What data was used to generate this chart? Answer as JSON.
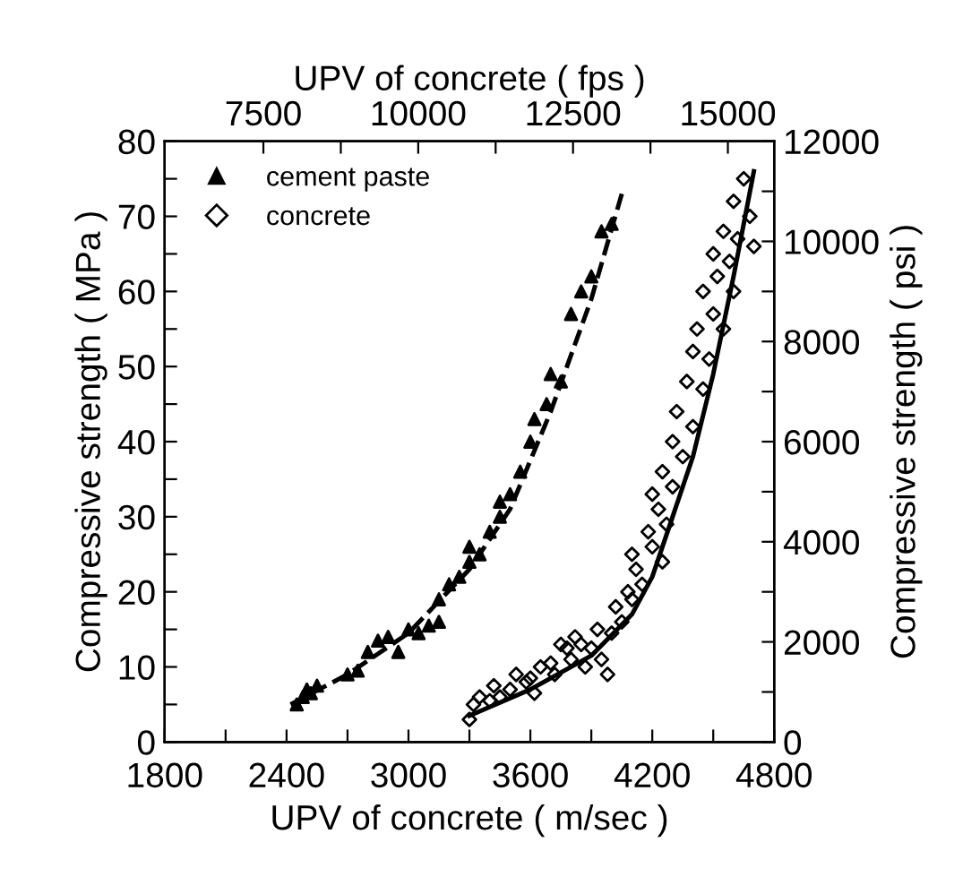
{
  "chart_data": {
    "type": "scatter",
    "xlabel": "UPV of concrete ( m/sec )",
    "ylabel": "Compressive strength ( MPa )",
    "x2label": "UPV of concrete ( fps )",
    "y2label": "Compressive strength ( psi )",
    "xlim": [
      1800,
      4800
    ],
    "ylim": [
      0,
      80
    ],
    "x2lim": [
      5905.5,
      15748
    ],
    "y2lim": [
      0,
      12000
    ],
    "xticks": [
      1800,
      {
        "value": 2100,
        "label": null
      },
      2400,
      {
        "value": 2700,
        "label": null
      },
      3000,
      {
        "value": 3300,
        "label": null
      },
      3600,
      {
        "value": 3900,
        "label": null
      },
      4200,
      {
        "value": 4500,
        "label": null
      },
      4800
    ],
    "yticks": [
      0,
      {
        "value": 5,
        "label": null
      },
      10,
      {
        "value": 15,
        "label": null
      },
      20,
      {
        "value": 25,
        "label": null
      },
      30,
      {
        "value": 35,
        "label": null
      },
      40,
      {
        "value": 45,
        "label": null
      },
      50,
      {
        "value": 55,
        "label": null
      },
      60,
      {
        "value": 65,
        "label": null
      },
      70,
      {
        "value": 75,
        "label": null
      },
      80
    ],
    "x2ticks": [
      7500,
      {
        "value": 8750,
        "label": null
      },
      10000,
      {
        "value": 11250,
        "label": null
      },
      12500,
      {
        "value": 13750,
        "label": null
      },
      15000
    ],
    "y2ticks": [
      0,
      {
        "value": 1000,
        "label": null
      },
      2000,
      {
        "value": 3000,
        "label": null
      },
      4000,
      {
        "value": 5000,
        "label": null
      },
      6000,
      {
        "value": 7000,
        "label": null
      },
      8000,
      {
        "value": 9000,
        "label": null
      },
      10000,
      {
        "value": 11000,
        "label": null
      },
      12000
    ],
    "grid": false,
    "legend": "top left",
    "series": [
      {
        "name": "cement paste",
        "marker": "triangle",
        "color": "#000000",
        "x": [
          2450,
          2480,
          2500,
          2520,
          2550,
          2700,
          2750,
          2800,
          2850,
          2900,
          2950,
          3000,
          3050,
          3100,
          3150,
          3150,
          3200,
          3250,
          3300,
          3300,
          3350,
          3400,
          3450,
          3450,
          3500,
          3550,
          3600,
          3620,
          3680,
          3700,
          3750,
          3800,
          3850,
          3900,
          3950,
          4000
        ],
        "values": [
          5,
          6,
          7,
          6.5,
          7.5,
          9,
          9.5,
          12,
          13.5,
          14,
          12,
          15,
          14.5,
          15.5,
          16,
          19,
          21,
          22,
          24,
          26,
          25,
          28,
          30,
          32,
          33,
          36,
          40,
          43,
          45,
          49,
          48,
          57,
          60,
          62,
          68,
          69
        ]
      },
      {
        "name": "concrete",
        "marker": "diamond",
        "color": "#000000",
        "x": [
          3300,
          3320,
          3350,
          3400,
          3420,
          3450,
          3500,
          3530,
          3580,
          3600,
          3620,
          3650,
          3700,
          3720,
          3750,
          3780,
          3800,
          3820,
          3850,
          3870,
          3900,
          3930,
          3950,
          3980,
          4000,
          4020,
          4050,
          4080,
          4100,
          4100,
          4120,
          4150,
          4180,
          4200,
          4200,
          4230,
          4250,
          4250,
          4270,
          4300,
          4300,
          4320,
          4350,
          4370,
          4400,
          4400,
          4420,
          4450,
          4450,
          4480,
          4500,
          4500,
          4520,
          4550,
          4550,
          4580,
          4600,
          4600,
          4620,
          4650,
          4680,
          4700
        ],
        "values": [
          3,
          5,
          6,
          5.5,
          7.5,
          6,
          7,
          9,
          8,
          8.5,
          6.5,
          10,
          10.5,
          9,
          13,
          12.5,
          11,
          14,
          13,
          10,
          12.5,
          15,
          11,
          9,
          14.5,
          18,
          16,
          20,
          19,
          25,
          23,
          21,
          28,
          26,
          33,
          31,
          24,
          36,
          29,
          34,
          40,
          44,
          38,
          48,
          42,
          52,
          55,
          47,
          60,
          51,
          57,
          65,
          62,
          55,
          68,
          64,
          60,
          72,
          67,
          75,
          70,
          66
        ]
      },
      {
        "type": "line",
        "line_style": "dashed",
        "color": "#000000",
        "x": [
          2420,
          2700,
          3000,
          3300,
          3500,
          3700,
          3900,
          4050
        ],
        "values": [
          5,
          9,
          14.5,
          23,
          31,
          44,
          59,
          73
        ]
      },
      {
        "type": "line",
        "line_style": "solid",
        "color": "#000000",
        "x": [
          3300,
          3600,
          3900,
          4100,
          4200,
          4300,
          4400,
          4500,
          4600,
          4700
        ],
        "values": [
          3.5,
          7,
          11.5,
          17,
          22,
          30,
          38,
          49,
          62,
          76
        ]
      }
    ]
  }
}
